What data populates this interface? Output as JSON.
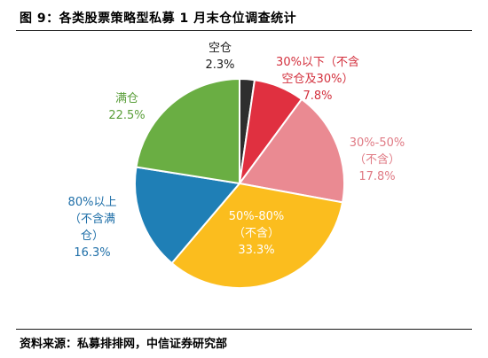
{
  "title": "图 9：各类股票策略型私募 1 月末仓位调查统计",
  "source": "资料来源：私募排排网，中信证券研究部",
  "chart_data": {
    "type": "pie",
    "title": "图 9：各类股票策略型私募 1 月末仓位调查统计",
    "start_angle_deg": 0,
    "direction": "clockwise",
    "slices": [
      {
        "name": "空仓",
        "label_lines": [
          "空仓"
        ],
        "value_label": "2.3%",
        "value": 2.3,
        "color": "#2e2e2e",
        "label_color": "#1a1a1a"
      },
      {
        "name": "30%以下（不含空仓及30%）",
        "label_lines": [
          "30%以下（不含",
          "空仓及30%）"
        ],
        "value_label": "7.8%",
        "value": 7.8,
        "color": "#e03040",
        "label_color": "#d3303d"
      },
      {
        "name": "30%-50%（不含）",
        "label_lines": [
          "30%-50%",
          "（不含）"
        ],
        "value_label": "17.8%",
        "value": 17.8,
        "color": "#ea8a92",
        "label_color": "#e07b85"
      },
      {
        "name": "50%-80%（不含）",
        "label_lines": [
          "50%-80%",
          "（不含）"
        ],
        "value_label": "33.3%",
        "value": 33.3,
        "color": "#fbbd1e",
        "label_color": "#ffffff"
      },
      {
        "name": "80%以上（不含满仓）",
        "label_lines": [
          "80%以上",
          "（不含满",
          "仓）"
        ],
        "value_label": "16.3%",
        "value": 16.3,
        "color": "#1f7fb6",
        "label_color": "#1f6fa8"
      },
      {
        "name": "满仓",
        "label_lines": [
          "满仓"
        ],
        "value_label": "22.5%",
        "value": 22.5,
        "color": "#6aae43",
        "label_color": "#5a9e3a"
      }
    ]
  }
}
